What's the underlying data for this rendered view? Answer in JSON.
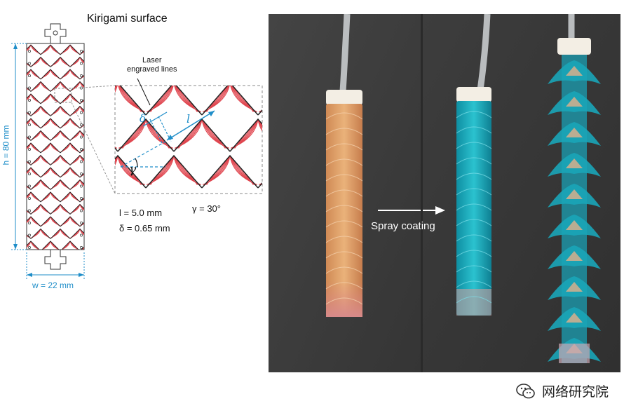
{
  "diagram": {
    "title": "Kirigami surface",
    "callout": "Laser engraved lines",
    "callout_line1": "Laser",
    "callout_line2": "engraved lines",
    "height_label": "h = 80 mm",
    "width_label": "w = 22 mm",
    "l_value": "l = 5.0 mm",
    "delta_value": "δ = 0.65 mm",
    "gamma_value": "γ = 30°",
    "symbol_l": "l",
    "symbol_delta": "δ",
    "symbol_gamma": "γ"
  },
  "photo": {
    "caption": "Spray coating"
  },
  "watermark": {
    "text": "网络研究院",
    "icon": "wechat-icon"
  },
  "colors": {
    "accent_blue": "#1f8ec9",
    "engraving_red": "#e0464f",
    "photo_bg": "#3a3a3a",
    "coating_cyan": "#1aa5b8"
  }
}
